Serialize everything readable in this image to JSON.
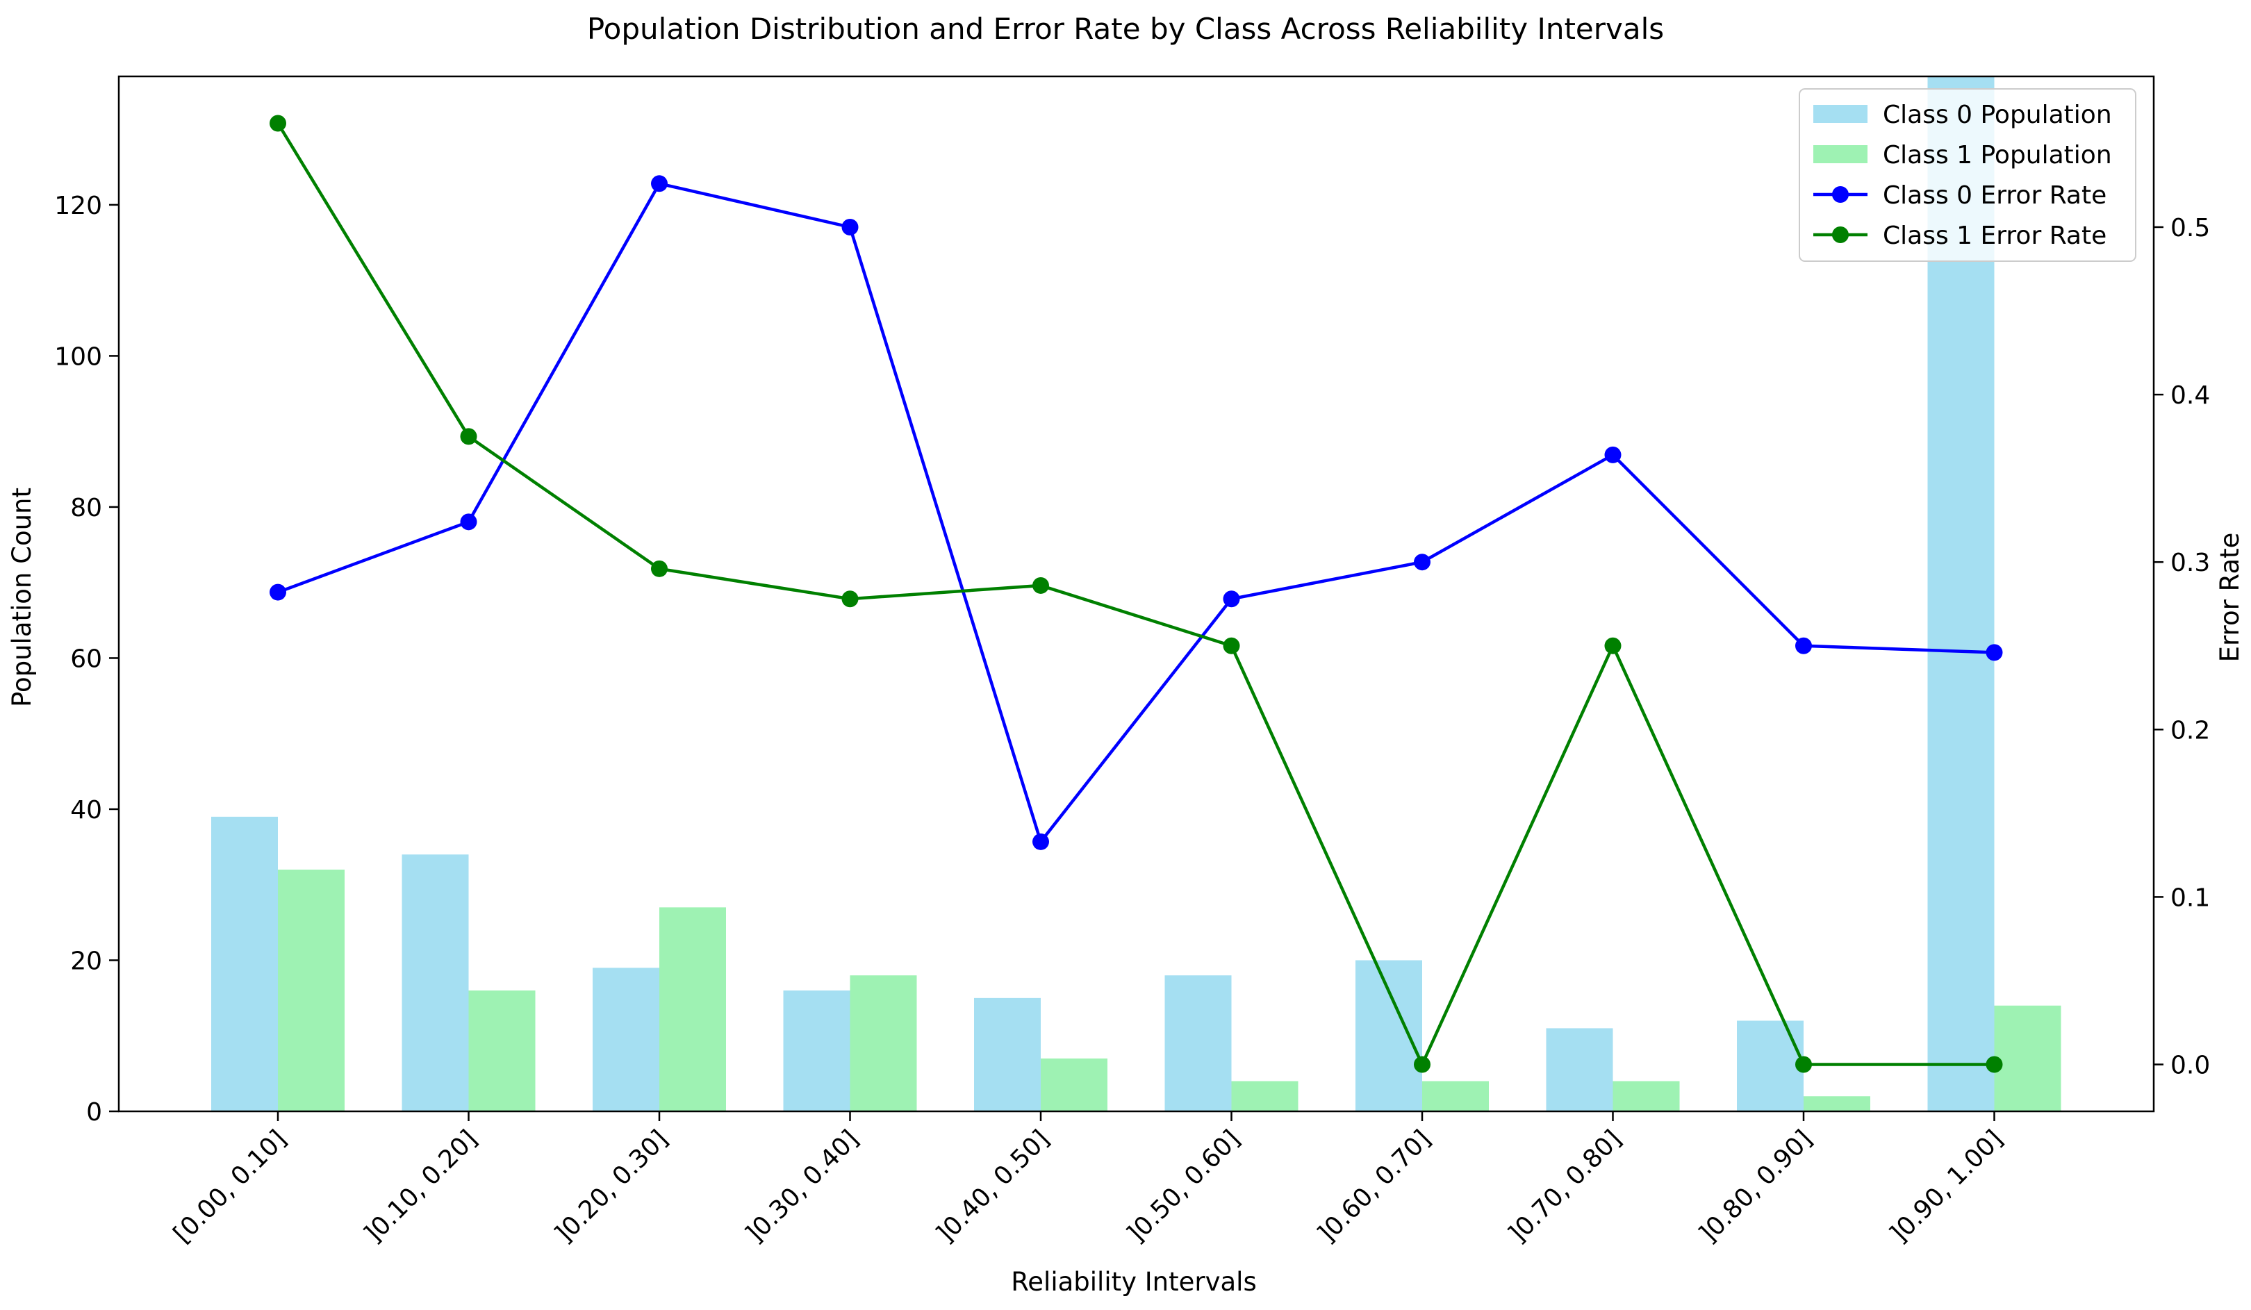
{
  "chart_data": {
    "type": "bar+line",
    "title": "Population Distribution and Error Rate by Class Across Reliability Intervals",
    "xlabel": "Reliability Intervals",
    "ylabel": "Population Count",
    "y2label": "Error Rate",
    "categories": [
      "[0.00, 0.10]",
      "]0.10, 0.20]",
      "]0.20, 0.30]",
      "]0.30, 0.40]",
      "]0.40, 0.50]",
      "]0.50, 0.60]",
      "]0.60, 0.70]",
      "]0.70, 0.80]",
      "]0.80, 0.90]",
      "]0.90, 1.00]"
    ],
    "ylim": [
      0,
      137
    ],
    "y2lim": [
      -0.028,
      0.59
    ],
    "yticks": [
      0,
      20,
      40,
      60,
      80,
      100,
      120
    ],
    "y2ticks": [
      0.0,
      0.1,
      0.2,
      0.3,
      0.4,
      0.5
    ],
    "ytick_labels": [
      "0",
      "20",
      "40",
      "60",
      "80",
      "100",
      "120"
    ],
    "y2tick_labels": [
      "0.0",
      "0.1",
      "0.2",
      "0.3",
      "0.4",
      "0.5"
    ],
    "bars": [
      {
        "name": "Class 0 Population",
        "color": "#a5dff2",
        "values": [
          39,
          34,
          19,
          16,
          15,
          18,
          20,
          11,
          12,
          142
        ]
      },
      {
        "name": "Class 1 Population",
        "color": "#9ef2b3",
        "values": [
          32,
          16,
          27,
          18,
          7,
          4,
          4,
          4,
          2,
          14
        ]
      }
    ],
    "lines": [
      {
        "name": "Class 0 Error Rate",
        "color": "#0000ff",
        "values": [
          0.282,
          0.324,
          0.526,
          0.5,
          0.133,
          0.278,
          0.3,
          0.364,
          0.25,
          0.246
        ]
      },
      {
        "name": "Class 1 Error Rate",
        "color": "#008000",
        "values": [
          0.562,
          0.375,
          0.296,
          0.278,
          0.286,
          0.25,
          0.0,
          0.25,
          0.0,
          0.0
        ]
      }
    ],
    "legend": {
      "position": "top-right",
      "entries": [
        "Class 0 Population",
        "Class 1 Population",
        "Class 0 Error Rate",
        "Class 1 Error Rate"
      ]
    }
  }
}
